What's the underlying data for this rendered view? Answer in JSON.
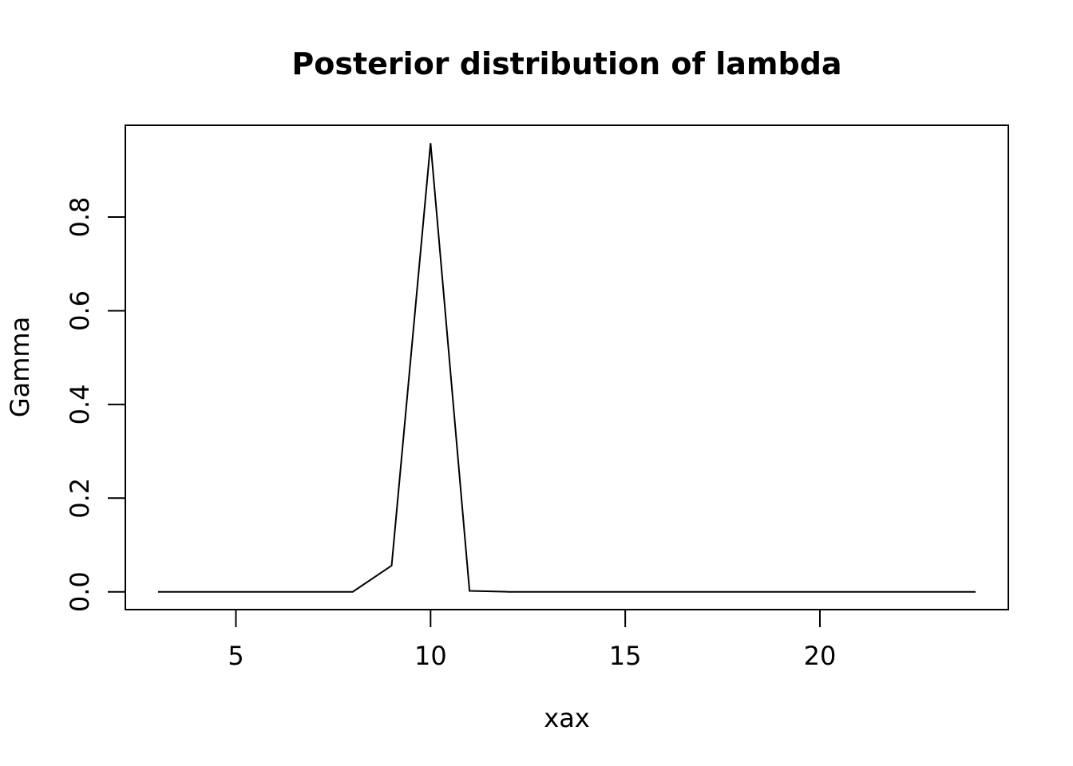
{
  "chart_data": {
    "type": "line",
    "title": "Posterior distribution of lambda",
    "xlabel": "xax",
    "ylabel": "Gamma",
    "xlim": [
      2.16,
      24.84
    ],
    "ylim": [
      -0.038,
      0.996
    ],
    "xticks": [
      5,
      10,
      15,
      20
    ],
    "yticks": [
      0.0,
      0.2,
      0.4,
      0.6,
      0.8
    ],
    "ytick_labels": [
      "0.0",
      "0.2",
      "0.4",
      "0.6",
      "0.8"
    ],
    "grid": false,
    "legend": "none",
    "line_color": "#000000",
    "series": [
      {
        "x": [
          3,
          4,
          5,
          6,
          7,
          8,
          9,
          10,
          11,
          12,
          13,
          14,
          15,
          16,
          17,
          18,
          19,
          20,
          21,
          22,
          23,
          24
        ],
        "values": [
          0.0,
          0.0,
          0.0,
          0.0,
          0.0,
          0.0,
          0.056,
          0.958,
          0.002,
          0.0,
          0.0,
          0.0,
          0.0,
          0.0,
          0.0,
          0.0,
          0.0,
          0.0,
          0.0,
          0.0,
          0.0,
          0.0
        ]
      }
    ]
  }
}
